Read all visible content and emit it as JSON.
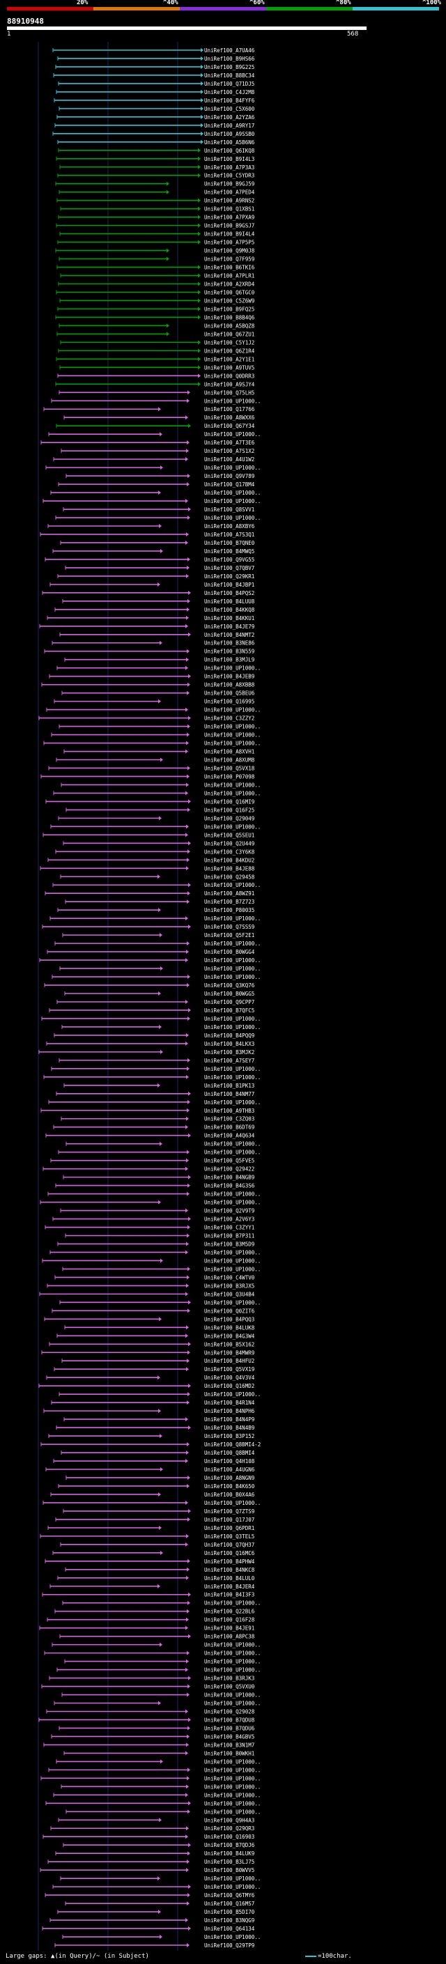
{
  "header": {
    "scale_labels": [
      "20%",
      "^40%",
      "^60%",
      "^80%",
      "^100%"
    ],
    "scale_colors": [
      "#d40000",
      "#e07800",
      "#8a2be2",
      "#00a000",
      "#2ec4d6"
    ],
    "query_name": "88910948",
    "start": "1",
    "end": "568"
  },
  "hits": [
    {
      "label": "UniRef100_A7UA46",
      "color": "#2ec4d6"
    },
    {
      "label": "UniRef100_B9HS66",
      "color": "#2ec4d6"
    },
    {
      "label": "UniRef100_B9G225",
      "color": "#2ec4d6"
    },
    {
      "label": "UniRef100_B8BC34",
      "color": "#2ec4d6"
    },
    {
      "label": "UniRef100_Q71DJ5",
      "color": "#2ec4d6"
    },
    {
      "label": "UniRef100_C4J2M8",
      "color": "#2ec4d6"
    },
    {
      "label": "UniRef100_B4FYF6",
      "color": "#2ec4d6"
    },
    {
      "label": "UniRef100_C5X600",
      "color": "#2ec4d6"
    },
    {
      "label": "UniRef100_A2YZA6",
      "color": "#2ec4d6"
    },
    {
      "label": "UniRef100_A9RY17",
      "color": "#2ec4d6"
    },
    {
      "label": "UniRef100_A9SSB0",
      "color": "#2ec4d6"
    },
    {
      "label": "UniRef100_A5B6N6",
      "color": "#2ec4d6"
    },
    {
      "label": "UniRef100_Q6IKQ8",
      "color": "#00a000"
    },
    {
      "label": "UniRef100_B9I4L3",
      "color": "#00a000"
    },
    {
      "label": "UniRef100_A7P3A3",
      "color": "#00a000"
    },
    {
      "label": "UniRef100_C5YDR3",
      "color": "#00a000"
    },
    {
      "label": "UniRef100_B9GJ59",
      "color": "#00a000"
    },
    {
      "label": "UniRef100_A7PED4",
      "color": "#00a000"
    },
    {
      "label": "UniRef100_A9RNS2",
      "color": "#00a000"
    },
    {
      "label": "UniRef100_Q1XBS1",
      "color": "#00a000"
    },
    {
      "label": "UniRef100_A7PXA9",
      "color": "#00a000"
    },
    {
      "label": "UniRef100_B9GSJ7",
      "color": "#00a000"
    },
    {
      "label": "UniRef100_B9I4L4",
      "color": "#00a000"
    },
    {
      "label": "UniRef100_A7P5P5",
      "color": "#00a000"
    },
    {
      "label": "UniRef100_Q9M0J8",
      "color": "#00a000"
    },
    {
      "label": "UniRef100_Q7F959",
      "color": "#00a000"
    },
    {
      "label": "UniRef100_B6TKI6",
      "color": "#00a000"
    },
    {
      "label": "UniRef100_A7PLR1",
      "color": "#00a000"
    },
    {
      "label": "UniRef100_A2XRD4",
      "color": "#00a000"
    },
    {
      "label": "UniRef100_Q6TGC0",
      "color": "#00a000"
    },
    {
      "label": "UniRef100_C5Z6W9",
      "color": "#00a000"
    },
    {
      "label": "UniRef100_B9FQ25",
      "color": "#00a000"
    },
    {
      "label": "UniRef100_B8B4Q6",
      "color": "#00a000"
    },
    {
      "label": "UniRef100_A5BQZ8",
      "color": "#00a000"
    },
    {
      "label": "UniRef100_Q67ZU1",
      "color": "#00a000"
    },
    {
      "label": "UniRef100_C5Y1J2",
      "color": "#00a000"
    },
    {
      "label": "UniRef100_Q6Z1R4",
      "color": "#00a000"
    },
    {
      "label": "UniRef100_A2Y1E1",
      "color": "#00a000"
    },
    {
      "label": "UniRef100_A9TUV5",
      "color": "#00a000"
    },
    {
      "label": "UniRef100_Q0DRR3",
      "color": "#d466e0"
    },
    {
      "label": "UniRef100_A9SJY4",
      "color": "#00a000"
    },
    {
      "label": "UniRef100_Q75LH5",
      "color": "#d466e0"
    },
    {
      "label": "UniRef100_UP1000..",
      "color": "#d466e0"
    },
    {
      "label": "UniRef100_Q17766",
      "color": "#d466e0"
    },
    {
      "label": "UniRef100_A8WXX6",
      "color": "#d466e0"
    },
    {
      "label": "UniRef100_Q67Y34",
      "color": "#00a000"
    },
    {
      "label": "UniRef100_UP1000..",
      "color": "#d466e0"
    },
    {
      "label": "UniRef100_A7T3E6",
      "color": "#d466e0"
    },
    {
      "label": "UniRef100_A7S1X2",
      "color": "#d466e0"
    },
    {
      "label": "UniRef100_A4U1W2",
      "color": "#d466e0"
    },
    {
      "label": "UniRef100_UP1000..",
      "color": "#d466e0"
    },
    {
      "label": "UniRef100_Q9V789",
      "color": "#d466e0"
    },
    {
      "label": "UniRef100_Q17BM4",
      "color": "#d466e0"
    },
    {
      "label": "UniRef100_UP1000..",
      "color": "#d466e0"
    },
    {
      "label": "UniRef100_UP1000..",
      "color": "#d466e0"
    },
    {
      "label": "UniRef100_Q8SVV1",
      "color": "#d466e0"
    },
    {
      "label": "UniRef100_UP1000..",
      "color": "#d466e0"
    },
    {
      "label": "UniRef100_A8XBY6",
      "color": "#d466e0"
    },
    {
      "label": "UniRef100_A7S3Q1",
      "color": "#d466e0"
    },
    {
      "label": "UniRef100_B7QNE0",
      "color": "#d466e0"
    },
    {
      "label": "UniRef100_B4MWQ5",
      "color": "#d466e0"
    },
    {
      "label": "UniRef100_Q9VG55",
      "color": "#d466e0"
    },
    {
      "label": "UniRef100_Q7QBV7",
      "color": "#d466e0"
    },
    {
      "label": "UniRef100_Q29KR1",
      "color": "#d466e0"
    },
    {
      "label": "UniRef100_B4JBP1",
      "color": "#d466e0"
    },
    {
      "label": "UniRef100_B4PQS2",
      "color": "#d466e0"
    },
    {
      "label": "UniRef100_B4LUU8",
      "color": "#d466e0"
    },
    {
      "label": "UniRef100_B4KKQ8",
      "color": "#d466e0"
    },
    {
      "label": "UniRef100_B4KKU1",
      "color": "#d466e0"
    },
    {
      "label": "UniRef100_B4JE79",
      "color": "#d466e0"
    },
    {
      "label": "UniRef100_B4NMT2",
      "color": "#d466e0"
    },
    {
      "label": "UniRef100_B3NE86",
      "color": "#d466e0"
    },
    {
      "label": "UniRef100_B3N559",
      "color": "#d466e0"
    },
    {
      "label": "UniRef100_B3MJL9",
      "color": "#d466e0"
    },
    {
      "label": "UniRef100_UP1000..",
      "color": "#d466e0"
    },
    {
      "label": "UniRef100_B4JEB9",
      "color": "#d466e0"
    },
    {
      "label": "UniRef100_A8XBB8",
      "color": "#d466e0"
    },
    {
      "label": "UniRef100_Q5BEU6",
      "color": "#d466e0"
    },
    {
      "label": "UniRef100_Q16995",
      "color": "#d466e0"
    },
    {
      "label": "UniRef100_UP1000..",
      "color": "#d466e0"
    },
    {
      "label": "UniRef100_C3ZZY2",
      "color": "#d466e0"
    },
    {
      "label": "UniRef100_UP1000..",
      "color": "#d466e0"
    },
    {
      "label": "UniRef100_UP1000..",
      "color": "#d466e0"
    },
    {
      "label": "UniRef100_UP1000..",
      "color": "#d466e0"
    },
    {
      "label": "UniRef100_A8XVH1",
      "color": "#d466e0"
    },
    {
      "label": "UniRef100_A8XUM8",
      "color": "#d466e0"
    },
    {
      "label": "UniRef100_Q5VX18",
      "color": "#d466e0"
    },
    {
      "label": "UniRef100_P07098",
      "color": "#d466e0"
    },
    {
      "label": "UniRef100_UP1000..",
      "color": "#d466e0"
    },
    {
      "label": "UniRef100_UP1000..",
      "color": "#d466e0"
    },
    {
      "label": "UniRef100_Q16MI9",
      "color": "#d466e0"
    },
    {
      "label": "UniRef100_Q16F25",
      "color": "#d466e0"
    },
    {
      "label": "UniRef100_Q29049",
      "color": "#d466e0"
    },
    {
      "label": "UniRef100_UP1000..",
      "color": "#d466e0"
    },
    {
      "label": "UniRef100_Q5SEU1",
      "color": "#d466e0"
    },
    {
      "label": "UniRef100_Q2U449",
      "color": "#d466e0"
    },
    {
      "label": "UniRef100_C3Y6K8",
      "color": "#d466e0"
    },
    {
      "label": "UniRef100_B4KDU2",
      "color": "#d466e0"
    },
    {
      "label": "UniRef100_B4JE88",
      "color": "#d466e0"
    },
    {
      "label": "UniRef100_Q29458",
      "color": "#d466e0"
    },
    {
      "label": "UniRef100_UP1000..",
      "color": "#d466e0"
    },
    {
      "label": "UniRef100_A8WZ91",
      "color": "#d466e0"
    },
    {
      "label": "UniRef100_B7Z723",
      "color": "#d466e0"
    },
    {
      "label": "UniRef100_P80035",
      "color": "#d466e0"
    },
    {
      "label": "UniRef100_UP1000..",
      "color": "#d466e0"
    },
    {
      "label": "UniRef100_Q7SSS9",
      "color": "#d466e0"
    },
    {
      "label": "UniRef100_Q5F2E1",
      "color": "#d466e0"
    },
    {
      "label": "UniRef100_UP1000..",
      "color": "#d466e0"
    },
    {
      "label": "UniRef100_B0WGG4",
      "color": "#d466e0"
    },
    {
      "label": "UniRef100_UP1000..",
      "color": "#d466e0"
    },
    {
      "label": "UniRef100_UP1000..",
      "color": "#d466e0"
    },
    {
      "label": "UniRef100_UP1000..",
      "color": "#d466e0"
    },
    {
      "label": "UniRef100_Q3KQ76",
      "color": "#d466e0"
    },
    {
      "label": "UniRef100_B0WGG5",
      "color": "#d466e0"
    },
    {
      "label": "UniRef100_Q9CPP7",
      "color": "#d466e0"
    },
    {
      "label": "UniRef100_B7QFC5",
      "color": "#d466e0"
    },
    {
      "label": "UniRef100_UP1000..",
      "color": "#d466e0"
    },
    {
      "label": "UniRef100_UP1000..",
      "color": "#d466e0"
    },
    {
      "label": "UniRef100_B4PQQ9",
      "color": "#d466e0"
    },
    {
      "label": "UniRef100_B4LKX3",
      "color": "#d466e0"
    },
    {
      "label": "UniRef100_B3MJK2",
      "color": "#d466e0"
    },
    {
      "label": "UniRef100_A7SEY7",
      "color": "#d466e0"
    },
    {
      "label": "UniRef100_UP1000..",
      "color": "#d466e0"
    },
    {
      "label": "UniRef100_UP1000..",
      "color": "#d466e0"
    },
    {
      "label": "UniRef100_B1PK13",
      "color": "#d466e0"
    },
    {
      "label": "UniRef100_B4NM77",
      "color": "#d466e0"
    },
    {
      "label": "UniRef100_UP1000..",
      "color": "#d466e0"
    },
    {
      "label": "UniRef100_A9THB3",
      "color": "#d466e0"
    },
    {
      "label": "UniRef100_C3ZQ03",
      "color": "#d466e0"
    },
    {
      "label": "UniRef100_B6DT69",
      "color": "#d466e0"
    },
    {
      "label": "UniRef100_A4Q634",
      "color": "#d466e0"
    },
    {
      "label": "UniRef100_UP1000..",
      "color": "#d466e0"
    },
    {
      "label": "UniRef100_UP1000..",
      "color": "#d466e0"
    },
    {
      "label": "UniRef100_Q5FVE5",
      "color": "#d466e0"
    },
    {
      "label": "UniRef100_Q29422",
      "color": "#d466e0"
    },
    {
      "label": "UniRef100_B4NGB9",
      "color": "#d466e0"
    },
    {
      "label": "UniRef100_B4G3S6",
      "color": "#d466e0"
    },
    {
      "label": "UniRef100_UP1000..",
      "color": "#d466e0"
    },
    {
      "label": "UniRef100_UP1000..",
      "color": "#d466e0"
    },
    {
      "label": "UniRef100_Q2V9T9",
      "color": "#d466e0"
    },
    {
      "label": "UniRef100_A2V6Y3",
      "color": "#d466e0"
    },
    {
      "label": "UniRef100_C3ZYY1",
      "color": "#d466e0"
    },
    {
      "label": "UniRef100_B7P311",
      "color": "#d466e0"
    },
    {
      "label": "UniRef100_B3M5D9",
      "color": "#d466e0"
    },
    {
      "label": "UniRef100_UP1000..",
      "color": "#d466e0"
    },
    {
      "label": "UniRef100_UP1000..",
      "color": "#d466e0"
    },
    {
      "label": "UniRef100_UP1000..",
      "color": "#d466e0"
    },
    {
      "label": "UniRef100_C4WTV0",
      "color": "#d466e0"
    },
    {
      "label": "UniRef100_B3RJX5",
      "color": "#d466e0"
    },
    {
      "label": "UniRef100_Q3U4B4",
      "color": "#d466e0"
    },
    {
      "label": "UniRef100_UP1000..",
      "color": "#d466e0"
    },
    {
      "label": "UniRef100_Q0ZIT6",
      "color": "#d466e0"
    },
    {
      "label": "UniRef100_B4PQQ3",
      "color": "#d466e0"
    },
    {
      "label": "UniRef100_B4LUK8",
      "color": "#d466e0"
    },
    {
      "label": "UniRef100_B4G3W4",
      "color": "#d466e0"
    },
    {
      "label": "UniRef100_B5X162",
      "color": "#d466e0"
    },
    {
      "label": "UniRef100_B4MWR9",
      "color": "#d466e0"
    },
    {
      "label": "UniRef100_B4HFU2",
      "color": "#d466e0"
    },
    {
      "label": "UniRef100_Q5VX19",
      "color": "#d466e0"
    },
    {
      "label": "UniRef100_Q4V3V4",
      "color": "#d466e0"
    },
    {
      "label": "UniRef100_Q16MD2",
      "color": "#d466e0"
    },
    {
      "label": "UniRef100_UP1000..",
      "color": "#d466e0"
    },
    {
      "label": "UniRef100_B4R1N4",
      "color": "#d466e0"
    },
    {
      "label": "UniRef100_B4NPH6",
      "color": "#d466e0"
    },
    {
      "label": "UniRef100_B4N4P9",
      "color": "#d466e0"
    },
    {
      "label": "UniRef100_B4N4B9",
      "color": "#d466e0"
    },
    {
      "label": "UniRef100_B3P152",
      "color": "#d466e0"
    },
    {
      "label": "UniRef100_Q8BMI4-2",
      "color": "#d466e0"
    },
    {
      "label": "UniRef100_Q8BMI4",
      "color": "#d466e0"
    },
    {
      "label": "UniRef100_Q4H108",
      "color": "#d466e0"
    },
    {
      "label": "UniRef100_A4UGN6",
      "color": "#d466e0"
    },
    {
      "label": "UniRef100_A8NGN9",
      "color": "#d466e0"
    },
    {
      "label": "UniRef100_B4K650",
      "color": "#d466e0"
    },
    {
      "label": "UniRef100_B0X4A6",
      "color": "#d466e0"
    },
    {
      "label": "UniRef100_UP1000..",
      "color": "#d466e0"
    },
    {
      "label": "UniRef100_Q7ZTS9",
      "color": "#d466e0"
    },
    {
      "label": "UniRef100_Q17J07",
      "color": "#d466e0"
    },
    {
      "label": "UniRef100_Q6PDR1",
      "color": "#d466e0"
    },
    {
      "label": "UniRef100_Q3TEL5",
      "color": "#d466e0"
    },
    {
      "label": "UniRef100_Q7QH37",
      "color": "#d466e0"
    },
    {
      "label": "UniRef100_Q16MC6",
      "color": "#d466e0"
    },
    {
      "label": "UniRef100_B4PHW4",
      "color": "#d466e0"
    },
    {
      "label": "UniRef100_B4NKC8",
      "color": "#d466e0"
    },
    {
      "label": "UniRef100_B4LUL0",
      "color": "#d466e0"
    },
    {
      "label": "UniRef100_B4JER4",
      "color": "#d466e0"
    },
    {
      "label": "UniRef100_B4I3F3",
      "color": "#d466e0"
    },
    {
      "label": "UniRef100_UP1000..",
      "color": "#d466e0"
    },
    {
      "label": "UniRef100_Q22BL6",
      "color": "#d466e0"
    },
    {
      "label": "UniRef100_Q16F28",
      "color": "#d466e0"
    },
    {
      "label": "UniRef100_B4JE91",
      "color": "#d466e0"
    },
    {
      "label": "UniRef100_A8PC38",
      "color": "#d466e0"
    },
    {
      "label": "UniRef100_UP1000..",
      "color": "#d466e0"
    },
    {
      "label": "UniRef100_UP1000..",
      "color": "#d466e0"
    },
    {
      "label": "UniRef100_UP1000..",
      "color": "#d466e0"
    },
    {
      "label": "UniRef100_UP1000..",
      "color": "#d466e0"
    },
    {
      "label": "UniRef100_B3RJK3",
      "color": "#d466e0"
    },
    {
      "label": "UniRef100_Q5VXU0",
      "color": "#d466e0"
    },
    {
      "label": "UniRef100_UP1000..",
      "color": "#d466e0"
    },
    {
      "label": "UniRef100_UP1000..",
      "color": "#d466e0"
    },
    {
      "label": "UniRef100_Q29028",
      "color": "#d466e0"
    },
    {
      "label": "UniRef100_B7QDU8",
      "color": "#d466e0"
    },
    {
      "label": "UniRef100_B7QDU6",
      "color": "#d466e0"
    },
    {
      "label": "UniRef100_B4GBV5",
      "color": "#d466e0"
    },
    {
      "label": "UniRef100_B3N1M7",
      "color": "#d466e0"
    },
    {
      "label": "UniRef100_B0WKH1",
      "color": "#d466e0"
    },
    {
      "label": "UniRef100_UP1000..",
      "color": "#d466e0"
    },
    {
      "label": "UniRef100_UP1000..",
      "color": "#d466e0"
    },
    {
      "label": "UniRef100_UP1000..",
      "color": "#d466e0"
    },
    {
      "label": "UniRef100_UP1000..",
      "color": "#d466e0"
    },
    {
      "label": "UniRef100_UP1000..",
      "color": "#d466e0"
    },
    {
      "label": "UniRef100_UP1000..",
      "color": "#d466e0"
    },
    {
      "label": "UniRef100_UP1000..",
      "color": "#d466e0"
    },
    {
      "label": "UniRef100_Q9H4A3",
      "color": "#d466e0"
    },
    {
      "label": "UniRef100_Q29QR3",
      "color": "#d466e0"
    },
    {
      "label": "UniRef100_Q16903",
      "color": "#d466e0"
    },
    {
      "label": "UniRef100_B7QDJ6",
      "color": "#d466e0"
    },
    {
      "label": "UniRef100_B4LUK9",
      "color": "#d466e0"
    },
    {
      "label": "UniRef100_B3LJ75",
      "color": "#d466e0"
    },
    {
      "label": "UniRef100_B0WVV5",
      "color": "#d466e0"
    },
    {
      "label": "UniRef100_UP1000..",
      "color": "#d466e0"
    },
    {
      "label": "UniRef100_UP1000..",
      "color": "#d466e0"
    },
    {
      "label": "UniRef100_Q6TMY6",
      "color": "#d466e0"
    },
    {
      "label": "UniRef100_Q16MS7",
      "color": "#d466e0"
    },
    {
      "label": "UniRef100_B5DI70",
      "color": "#d466e0"
    },
    {
      "label": "UniRef100_B3NQG9",
      "color": "#d466e0"
    },
    {
      "label": "UniRef100_Q64134",
      "color": "#d466e0"
    },
    {
      "label": "UniRef100_UP1000..",
      "color": "#d466e0"
    },
    {
      "label": "UniRef100_Q29TP9",
      "color": "#d466e0"
    }
  ],
  "footer": {
    "legend_left": "Large gaps: ▲(in Query)/~ (in Subject)",
    "legend_right": "=100char."
  }
}
